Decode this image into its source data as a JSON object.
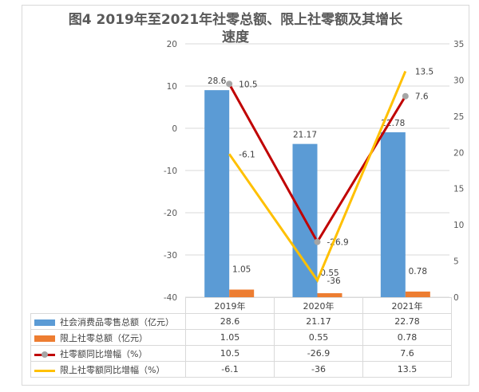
{
  "chart_data": {
    "type": "bar+line",
    "title": "图4 2019年至2021年社零总额、限上社零额及其增长速度",
    "title_line1": "图4 2019年至2021年社零总额、限上社零额及其增长",
    "title_line2": "速度",
    "categories": [
      "2019年",
      "2020年",
      "2021年"
    ],
    "left_axis": {
      "range": [
        -40,
        20
      ],
      "ticks": [
        "20",
        "10",
        "0",
        "-10",
        "-20",
        "-30",
        "-40"
      ]
    },
    "right_axis": {
      "range": [
        0,
        35
      ],
      "ticks": [
        "35",
        "30",
        "25",
        "20",
        "15",
        "10",
        "5",
        "0"
      ]
    },
    "series": [
      {
        "name": "社会消费品零售总额（亿元）",
        "kind": "bar",
        "axis": "right",
        "color": "#5b9bd5",
        "values": [
          28.6,
          21.17,
          22.78
        ],
        "labels": [
          "28.6",
          "21.17",
          "22.78"
        ]
      },
      {
        "name": "限上社零总额（亿元）",
        "kind": "bar",
        "axis": "right",
        "color": "#ed7d31",
        "values": [
          1.05,
          0.55,
          0.78
        ],
        "labels": [
          "1.05",
          "0.55",
          "0.78"
        ]
      },
      {
        "name": "社零额同比增幅（%）",
        "kind": "line",
        "axis": "left",
        "color": "#c00000",
        "marker": "#a5a5a5",
        "values": [
          10.5,
          -26.9,
          7.6
        ],
        "labels": [
          "10.5",
          "-26.9",
          "7.6"
        ]
      },
      {
        "name": "限上社零额同比增幅（%）",
        "kind": "line",
        "axis": "left",
        "color": "#ffc000",
        "values": [
          -6.1,
          -36,
          13.5
        ],
        "labels": [
          "-6.1",
          "-36",
          "13.5"
        ]
      }
    ],
    "grid": true,
    "legend": "data-table-bottom"
  }
}
